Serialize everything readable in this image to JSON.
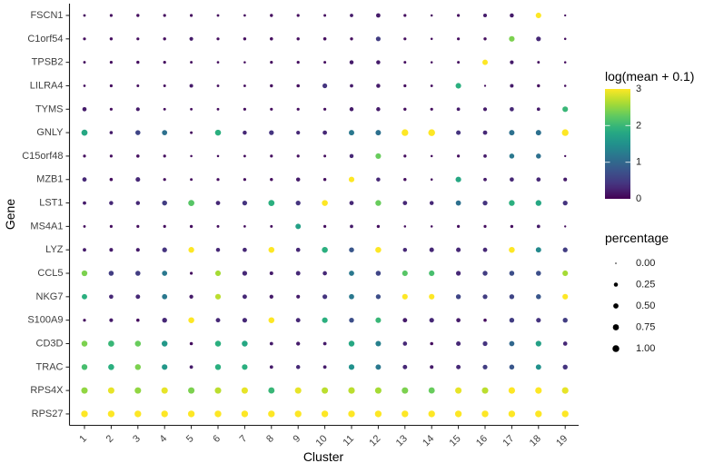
{
  "figure": {
    "xlabel": "Cluster",
    "ylabel": "Gene"
  },
  "chart_data": {
    "type": "scatter",
    "subtype": "dot-plot",
    "xlabel": "Cluster",
    "ylabel": "Gene",
    "grid": false,
    "x_categories": [
      "1",
      "2",
      "3",
      "4",
      "5",
      "6",
      "7",
      "8",
      "9",
      "10",
      "11",
      "12",
      "13",
      "14",
      "15",
      "16",
      "17",
      "18",
      "19"
    ],
    "y_categories_top_to_bottom": [
      "FSCN1",
      "C1orf54",
      "TPSB2",
      "LILRA4",
      "TYMS",
      "GNLY",
      "C15orf48",
      "MZB1",
      "LST1",
      "MS4A1",
      "LYZ",
      "CCL5",
      "NKG7",
      "S100A9",
      "CD3D",
      "TRAC",
      "RPS4X",
      "RPS27"
    ],
    "color_scale": {
      "title": "log(mean + 0.1)",
      "palette": "viridis",
      "domain": [
        0,
        3
      ],
      "ticks": [
        3,
        2,
        1,
        0
      ]
    },
    "size_scale": {
      "title": "percentage",
      "domain": [
        0,
        1
      ],
      "legend_values": [
        0,
        0.25,
        0.5,
        0.75,
        1
      ],
      "legend_labels": [
        "0.00",
        "0.25",
        "0.50",
        "0.75",
        "1.00"
      ]
    },
    "point_format": "[percentage, log_mean] per cluster 1..19",
    "points_by_gene": {
      "FSCN1": [
        [
          0.05,
          0.1
        ],
        [
          0.08,
          0.1
        ],
        [
          0.1,
          0.1
        ],
        [
          0.08,
          0.1
        ],
        [
          0.08,
          0.1
        ],
        [
          0.05,
          0.1
        ],
        [
          0.04,
          0.1
        ],
        [
          0.1,
          0.1
        ],
        [
          0.08,
          0.1
        ],
        [
          0.06,
          0.1
        ],
        [
          0.14,
          0.2
        ],
        [
          0.3,
          0.2
        ],
        [
          0.08,
          0.1
        ],
        [
          0.03,
          0.1
        ],
        [
          0.08,
          0.1
        ],
        [
          0.18,
          0.2
        ],
        [
          0.25,
          0.2
        ],
        [
          0.6,
          3.0
        ],
        [
          0.02,
          0.1
        ]
      ],
      "C1orf54": [
        [
          0.08,
          0.1
        ],
        [
          0.1,
          0.1
        ],
        [
          0.08,
          0.1
        ],
        [
          0.1,
          0.1
        ],
        [
          0.2,
          0.2
        ],
        [
          0.08,
          0.1
        ],
        [
          0.1,
          0.1
        ],
        [
          0.12,
          0.1
        ],
        [
          0.1,
          0.1
        ],
        [
          0.12,
          0.1
        ],
        [
          0.1,
          0.1
        ],
        [
          0.38,
          0.5
        ],
        [
          0.08,
          0.1
        ],
        [
          0.03,
          0.1
        ],
        [
          0.08,
          0.1
        ],
        [
          0.1,
          0.1
        ],
        [
          0.62,
          2.4
        ],
        [
          0.38,
          0.3
        ],
        [
          0.03,
          0.1
        ]
      ],
      "TPSB2": [
        [
          0.05,
          0.1
        ],
        [
          0.08,
          0.1
        ],
        [
          0.1,
          0.1
        ],
        [
          0.08,
          0.1
        ],
        [
          0.05,
          0.1
        ],
        [
          0.04,
          0.1
        ],
        [
          0.03,
          0.1
        ],
        [
          0.08,
          0.1
        ],
        [
          0.08,
          0.1
        ],
        [
          0.06,
          0.1
        ],
        [
          0.25,
          0.2
        ],
        [
          0.25,
          0.2
        ],
        [
          0.06,
          0.1
        ],
        [
          0.03,
          0.1
        ],
        [
          0.06,
          0.1
        ],
        [
          0.55,
          3.0
        ],
        [
          0.2,
          0.2
        ],
        [
          0.05,
          0.1
        ],
        [
          0.03,
          0.1
        ]
      ],
      "LILRA4": [
        [
          0.04,
          0.1
        ],
        [
          0.08,
          0.1
        ],
        [
          0.06,
          0.1
        ],
        [
          0.06,
          0.1
        ],
        [
          0.18,
          0.2
        ],
        [
          0.05,
          0.1
        ],
        [
          0.05,
          0.1
        ],
        [
          0.1,
          0.1
        ],
        [
          0.12,
          0.1
        ],
        [
          0.38,
          0.4
        ],
        [
          0.14,
          0.2
        ],
        [
          0.25,
          0.2
        ],
        [
          0.08,
          0.1
        ],
        [
          0.05,
          0.1
        ],
        [
          0.6,
          1.9
        ],
        [
          0.02,
          0.1
        ],
        [
          0.18,
          0.2
        ],
        [
          0.1,
          0.1
        ],
        [
          0.03,
          0.1
        ]
      ],
      "TYMS": [
        [
          0.28,
          0.2
        ],
        [
          0.08,
          0.1
        ],
        [
          0.2,
          0.2
        ],
        [
          0.06,
          0.1
        ],
        [
          0.05,
          0.1
        ],
        [
          0.05,
          0.1
        ],
        [
          0.08,
          0.1
        ],
        [
          0.08,
          0.1
        ],
        [
          0.08,
          0.1
        ],
        [
          0.08,
          0.1
        ],
        [
          0.25,
          0.2
        ],
        [
          0.25,
          0.2
        ],
        [
          0.1,
          0.1
        ],
        [
          0.08,
          0.1
        ],
        [
          0.14,
          0.2
        ],
        [
          0.2,
          0.2
        ],
        [
          0.28,
          0.3
        ],
        [
          0.14,
          0.2
        ],
        [
          0.6,
          2.0
        ]
      ],
      "GNLY": [
        [
          0.75,
          1.8
        ],
        [
          0.12,
          0.2
        ],
        [
          0.45,
          0.6
        ],
        [
          0.5,
          1.1
        ],
        [
          0.06,
          0.1
        ],
        [
          0.7,
          1.9
        ],
        [
          0.25,
          0.3
        ],
        [
          0.4,
          0.4
        ],
        [
          0.2,
          0.3
        ],
        [
          0.3,
          0.3
        ],
        [
          0.55,
          1.2
        ],
        [
          0.55,
          1.1
        ],
        [
          0.95,
          3.0
        ],
        [
          1.0,
          3.0
        ],
        [
          0.35,
          0.4
        ],
        [
          0.3,
          0.3
        ],
        [
          0.55,
          1.1
        ],
        [
          0.55,
          1.1
        ],
        [
          0.95,
          3.0
        ]
      ],
      "C15orf48": [
        [
          0.08,
          0.1
        ],
        [
          0.08,
          0.1
        ],
        [
          0.12,
          0.1
        ],
        [
          0.08,
          0.1
        ],
        [
          0.03,
          0.1
        ],
        [
          0.03,
          0.1
        ],
        [
          0.05,
          0.1
        ],
        [
          0.08,
          0.1
        ],
        [
          0.08,
          0.1
        ],
        [
          0.06,
          0.1
        ],
        [
          0.25,
          0.3
        ],
        [
          0.6,
          2.3
        ],
        [
          0.08,
          0.1
        ],
        [
          0.03,
          0.1
        ],
        [
          0.08,
          0.1
        ],
        [
          0.14,
          0.2
        ],
        [
          0.45,
          1.2
        ],
        [
          0.45,
          1.1
        ],
        [
          0.02,
          0.1
        ]
      ],
      "MZB1": [
        [
          0.3,
          0.3
        ],
        [
          0.12,
          0.1
        ],
        [
          0.35,
          0.3
        ],
        [
          0.08,
          0.1
        ],
        [
          0.06,
          0.1
        ],
        [
          0.08,
          0.1
        ],
        [
          0.08,
          0.1
        ],
        [
          0.1,
          0.1
        ],
        [
          0.25,
          0.2
        ],
        [
          0.1,
          0.1
        ],
        [
          0.6,
          3.0
        ],
        [
          0.25,
          0.3
        ],
        [
          0.1,
          0.1
        ],
        [
          0.03,
          0.1
        ],
        [
          0.6,
          1.8
        ],
        [
          0.14,
          0.2
        ],
        [
          0.28,
          0.3
        ],
        [
          0.28,
          0.3
        ],
        [
          0.18,
          0.2
        ]
      ],
      "LST1": [
        [
          0.15,
          0.2
        ],
        [
          0.25,
          0.3
        ],
        [
          0.25,
          0.3
        ],
        [
          0.45,
          0.5
        ],
        [
          0.75,
          2.2
        ],
        [
          0.3,
          0.3
        ],
        [
          0.4,
          0.4
        ],
        [
          0.75,
          1.9
        ],
        [
          0.4,
          0.4
        ],
        [
          0.7,
          3.0
        ],
        [
          0.3,
          0.3
        ],
        [
          0.65,
          2.3
        ],
        [
          0.3,
          0.3
        ],
        [
          0.25,
          0.3
        ],
        [
          0.5,
          1.1
        ],
        [
          0.4,
          0.4
        ],
        [
          0.65,
          1.9
        ],
        [
          0.65,
          1.8
        ],
        [
          0.4,
          0.4
        ]
      ],
      "MS4A1": [
        [
          0.05,
          0.1
        ],
        [
          0.08,
          0.1
        ],
        [
          0.08,
          0.1
        ],
        [
          0.08,
          0.1
        ],
        [
          0.1,
          0.1
        ],
        [
          0.06,
          0.1
        ],
        [
          0.04,
          0.1
        ],
        [
          0.06,
          0.1
        ],
        [
          0.55,
          1.7
        ],
        [
          0.08,
          0.1
        ],
        [
          0.14,
          0.2
        ],
        [
          0.1,
          0.1
        ],
        [
          0.03,
          0.1
        ],
        [
          0.03,
          0.1
        ],
        [
          0.08,
          0.1
        ],
        [
          0.08,
          0.1
        ],
        [
          0.1,
          0.1
        ],
        [
          0.14,
          0.2
        ],
        [
          0.02,
          0.1
        ]
      ],
      "LYZ": [
        [
          0.15,
          0.2
        ],
        [
          0.18,
          0.2
        ],
        [
          0.2,
          0.2
        ],
        [
          0.4,
          0.4
        ],
        [
          0.65,
          3.0
        ],
        [
          0.25,
          0.3
        ],
        [
          0.28,
          0.3
        ],
        [
          0.7,
          3.0
        ],
        [
          0.28,
          0.3
        ],
        [
          0.7,
          1.9
        ],
        [
          0.45,
          0.8
        ],
        [
          0.7,
          3.0
        ],
        [
          0.25,
          0.3
        ],
        [
          0.35,
          0.3
        ],
        [
          0.35,
          0.3
        ],
        [
          0.3,
          0.3
        ],
        [
          0.7,
          3.0
        ],
        [
          0.55,
          1.4
        ],
        [
          0.4,
          0.5
        ]
      ],
      "CCL5": [
        [
          0.65,
          2.4
        ],
        [
          0.45,
          0.5
        ],
        [
          0.45,
          0.5
        ],
        [
          0.5,
          1.2
        ],
        [
          0.08,
          0.1
        ],
        [
          0.6,
          2.6
        ],
        [
          0.4,
          0.3
        ],
        [
          0.18,
          0.2
        ],
        [
          0.32,
          0.3
        ],
        [
          0.28,
          0.3
        ],
        [
          0.5,
          1.2
        ],
        [
          0.45,
          0.6
        ],
        [
          0.6,
          2.2
        ],
        [
          0.6,
          2.1
        ],
        [
          0.38,
          0.3
        ],
        [
          0.42,
          0.5
        ],
        [
          0.45,
          0.7
        ],
        [
          0.45,
          0.7
        ],
        [
          0.6,
          2.6
        ]
      ],
      "NKG7": [
        [
          0.55,
          1.9
        ],
        [
          0.28,
          0.3
        ],
        [
          0.32,
          0.3
        ],
        [
          0.5,
          1.2
        ],
        [
          0.22,
          0.2
        ],
        [
          0.6,
          2.7
        ],
        [
          0.32,
          0.3
        ],
        [
          0.22,
          0.2
        ],
        [
          0.18,
          0.2
        ],
        [
          0.38,
          0.4
        ],
        [
          0.5,
          1.2
        ],
        [
          0.4,
          0.7
        ],
        [
          0.6,
          3.0
        ],
        [
          0.6,
          3.0
        ],
        [
          0.42,
          0.6
        ],
        [
          0.38,
          0.5
        ],
        [
          0.42,
          0.6
        ],
        [
          0.45,
          0.8
        ],
        [
          0.6,
          3.0
        ]
      ],
      "S100A9": [
        [
          0.08,
          0.1
        ],
        [
          0.2,
          0.2
        ],
        [
          0.12,
          0.1
        ],
        [
          0.42,
          0.3
        ],
        [
          0.7,
          3.0
        ],
        [
          0.32,
          0.3
        ],
        [
          0.38,
          0.3
        ],
        [
          0.7,
          3.0
        ],
        [
          0.32,
          0.3
        ],
        [
          0.62,
          1.9
        ],
        [
          0.42,
          0.7
        ],
        [
          0.58,
          2.0
        ],
        [
          0.32,
          0.2
        ],
        [
          0.38,
          0.3
        ],
        [
          0.28,
          0.2
        ],
        [
          0.12,
          0.1
        ],
        [
          0.42,
          0.5
        ],
        [
          0.38,
          0.4
        ],
        [
          0.42,
          0.5
        ]
      ],
      "CD3D": [
        [
          0.7,
          2.4
        ],
        [
          0.75,
          2.0
        ],
        [
          0.7,
          2.3
        ],
        [
          0.68,
          1.6
        ],
        [
          0.12,
          0.1
        ],
        [
          0.7,
          1.9
        ],
        [
          0.68,
          1.8
        ],
        [
          0.15,
          0.2
        ],
        [
          0.22,
          0.2
        ],
        [
          0.15,
          0.2
        ],
        [
          0.68,
          1.8
        ],
        [
          0.58,
          1.3
        ],
        [
          0.28,
          0.3
        ],
        [
          0.12,
          0.1
        ],
        [
          0.35,
          0.3
        ],
        [
          0.38,
          0.4
        ],
        [
          0.5,
          1.0
        ],
        [
          0.62,
          1.7
        ],
        [
          0.28,
          0.3
        ]
      ],
      "TRAC": [
        [
          0.68,
          2.1
        ],
        [
          0.72,
          1.9
        ],
        [
          0.68,
          2.4
        ],
        [
          0.62,
          1.6
        ],
        [
          0.15,
          0.2
        ],
        [
          0.68,
          1.9
        ],
        [
          0.62,
          1.9
        ],
        [
          0.15,
          0.2
        ],
        [
          0.25,
          0.3
        ],
        [
          0.15,
          0.2
        ],
        [
          0.62,
          1.5
        ],
        [
          0.55,
          1.2
        ],
        [
          0.32,
          0.3
        ],
        [
          0.18,
          0.2
        ],
        [
          0.32,
          0.3
        ],
        [
          0.38,
          0.5
        ],
        [
          0.45,
          0.8
        ],
        [
          0.55,
          1.5
        ],
        [
          0.42,
          0.4
        ]
      ],
      "RPS4X": [
        [
          0.85,
          2.5
        ],
        [
          0.85,
          2.9
        ],
        [
          0.85,
          2.5
        ],
        [
          0.85,
          2.9
        ],
        [
          0.85,
          2.4
        ],
        [
          0.85,
          2.7
        ],
        [
          0.85,
          2.9
        ],
        [
          0.8,
          2.0
        ],
        [
          0.85,
          2.9
        ],
        [
          0.85,
          2.7
        ],
        [
          0.9,
          2.7
        ],
        [
          0.85,
          2.6
        ],
        [
          0.85,
          2.4
        ],
        [
          0.8,
          2.3
        ],
        [
          0.85,
          2.9
        ],
        [
          0.85,
          2.7
        ],
        [
          0.9,
          3.0
        ],
        [
          0.9,
          3.0
        ],
        [
          0.9,
          2.9
        ]
      ],
      "RPS27": [
        [
          0.95,
          3.0
        ],
        [
          0.95,
          3.0
        ],
        [
          0.95,
          3.0
        ],
        [
          0.95,
          3.0
        ],
        [
          0.95,
          3.0
        ],
        [
          0.95,
          3.0
        ],
        [
          0.95,
          3.0
        ],
        [
          0.95,
          3.0
        ],
        [
          0.95,
          3.0
        ],
        [
          0.95,
          3.0
        ],
        [
          0.95,
          3.0
        ],
        [
          0.95,
          3.0
        ],
        [
          0.95,
          3.0
        ],
        [
          0.95,
          3.0
        ],
        [
          0.95,
          3.0
        ],
        [
          0.95,
          3.0
        ],
        [
          0.95,
          3.0
        ],
        [
          0.95,
          3.0
        ],
        [
          0.95,
          3.0
        ]
      ]
    }
  }
}
